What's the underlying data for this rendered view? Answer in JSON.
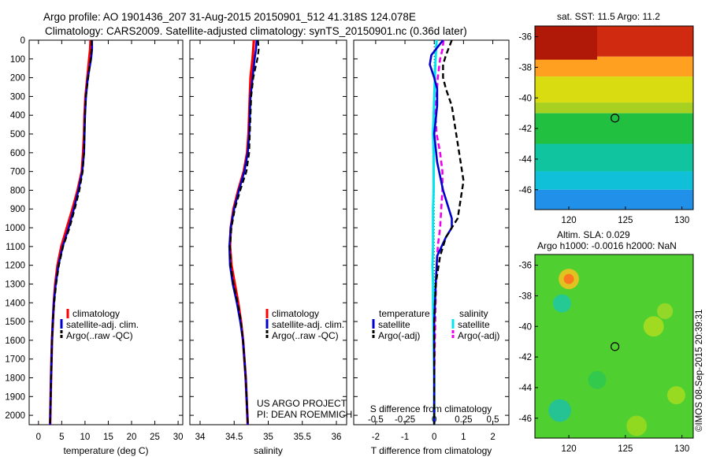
{
  "header": {
    "line1": "Argo profile: AO 1901436_207 31-Aug-2015 20150901_512 41.318S 124.078E",
    "line2": "Climatology: CARS2009. Satellite-adjusted climatology: synTS_20150901.nc (0.36d later)"
  },
  "colors": {
    "climatology": "#ff0000",
    "satellite": "#0000cc",
    "argo": "#000000",
    "salinity_sat": "#00e5ee",
    "salinity_argo": "#ee00ee"
  },
  "depth_ticks": [
    "0",
    "100",
    "200",
    "300",
    "400",
    "500",
    "600",
    "700",
    "800",
    "900",
    "1000",
    "1100",
    "1200",
    "1300",
    "1400",
    "1500",
    "1600",
    "1700",
    "1800",
    "1900",
    "2000"
  ],
  "legends": {
    "temp": [
      "climatology",
      "satellite-adj. clim.",
      "Argo(..raw -QC)"
    ],
    "sal": [
      "climatology",
      "satellite-adj. clim.",
      "Argo(..raw -QC)"
    ],
    "diff": {
      "temperature": "temperature",
      "salinity": "salinity",
      "t_satellite": "satellite",
      "t_argo": "Argo(-adj)",
      "s_satellite": "satellite",
      "s_argo": "Argo(-adj)"
    }
  },
  "project": {
    "line1": "US ARGO PROJECT",
    "line2": "PI: DEAN ROEMMICH"
  },
  "map_top": {
    "title": "sat. SST: 11.5  Argo: 11.2"
  },
  "map_bottom": {
    "title1": "Altim. SLA: 0.029",
    "title2": "Argo h1000: -0.0016 h2000: NaN"
  },
  "watermark": "©IMOS 08-Sep-2015 20:39:31",
  "chart_data": [
    {
      "type": "line",
      "xlabel": "temperature (deg C)",
      "xlim": [
        -2,
        31
      ],
      "ylim": [
        2050,
        0
      ],
      "xticks": [
        "0",
        "5",
        "10",
        "15",
        "20",
        "25",
        "30"
      ],
      "series": [
        {
          "name": "climatology",
          "depth": [
            0,
            50,
            100,
            200,
            300,
            400,
            500,
            600,
            700,
            800,
            900,
            1000,
            1100,
            1200,
            1300,
            1400,
            1500,
            1600,
            1800,
            2050
          ],
          "values": [
            11.2,
            11.1,
            10.9,
            10.5,
            10.1,
            9.9,
            9.8,
            9.6,
            9.3,
            8.4,
            7.3,
            6.1,
            4.9,
            4.1,
            3.6,
            3.3,
            3.1,
            2.9,
            2.7,
            2.5
          ]
        },
        {
          "name": "satellite-adj. clim.",
          "depth": [
            0,
            50,
            100,
            200,
            300,
            400,
            500,
            600,
            700,
            800,
            900,
            1000,
            1100,
            1200,
            1300,
            1400,
            1500,
            1600,
            1800,
            2050
          ],
          "values": [
            11.5,
            11.5,
            11.3,
            10.6,
            10.2,
            10.0,
            9.9,
            9.8,
            9.4,
            8.6,
            7.6,
            6.5,
            5.2,
            4.3,
            3.7,
            3.3,
            3.1,
            2.9,
            2.7,
            2.5
          ]
        },
        {
          "name": "Argo(..raw -QC)",
          "depth": [
            0,
            50,
            100,
            200,
            300,
            400,
            500,
            600,
            700,
            800,
            900,
            1000,
            1100,
            1200,
            1300,
            1400,
            1500,
            1600,
            1800,
            2050
          ],
          "values": [
            11.4,
            11.4,
            11.2,
            10.7,
            10.2,
            10.0,
            9.9,
            9.8,
            9.5,
            8.8,
            7.8,
            6.7,
            5.3,
            4.4,
            3.8,
            3.4,
            3.1,
            2.9,
            2.7,
            2.5
          ]
        }
      ]
    },
    {
      "type": "line",
      "xlabel": "salinity",
      "xlim": [
        33.85,
        36.15
      ],
      "ylim": [
        2050,
        0
      ],
      "xticks": [
        "34",
        "34.5",
        "35",
        "35.5",
        "36"
      ],
      "series": [
        {
          "name": "climatology",
          "depth": [
            0,
            50,
            100,
            200,
            300,
            400,
            500,
            600,
            700,
            800,
            900,
            1000,
            1100,
            1200,
            1300,
            1400,
            1500,
            1600,
            1800,
            2050
          ],
          "values": [
            34.79,
            34.78,
            34.77,
            34.74,
            34.73,
            34.72,
            34.71,
            34.69,
            34.64,
            34.56,
            34.49,
            34.45,
            34.44,
            34.46,
            34.51,
            34.56,
            34.6,
            34.63,
            34.67,
            34.7
          ]
        },
        {
          "name": "satellite-adj. clim.",
          "depth": [
            0,
            50,
            100,
            200,
            300,
            400,
            500,
            600,
            700,
            800,
            900,
            1000,
            1100,
            1200,
            1300,
            1400,
            1500,
            1600,
            1800,
            2050
          ],
          "values": [
            34.83,
            34.82,
            34.8,
            34.77,
            34.74,
            34.73,
            34.72,
            34.7,
            34.65,
            34.57,
            34.5,
            34.45,
            34.43,
            34.44,
            34.48,
            34.54,
            34.59,
            34.63,
            34.67,
            34.7
          ]
        },
        {
          "name": "Argo(..raw -QC)",
          "depth": [
            0,
            50,
            100,
            200,
            300,
            400,
            500,
            600,
            700,
            800,
            900,
            1000,
            1100,
            1200,
            1300,
            1400,
            1500,
            1600,
            1800,
            2050
          ],
          "values": [
            34.85,
            34.86,
            34.84,
            34.78,
            34.75,
            34.74,
            34.73,
            34.72,
            34.68,
            34.59,
            34.51,
            34.46,
            34.44,
            34.45,
            34.49,
            34.55,
            34.6,
            34.63,
            34.67,
            34.7
          ]
        }
      ]
    },
    {
      "type": "line",
      "xlabel": "T difference from climatology",
      "xlabel_top": "S difference from climatology",
      "xlim": [
        -2.75,
        2.55
      ],
      "ylim": [
        2050,
        0
      ],
      "xticks": [
        "-2",
        "-1",
        "0",
        "1",
        "2"
      ],
      "xticks_top": [
        "-0.5",
        "-0.25",
        "0",
        "0.25",
        "0.5"
      ],
      "series": [
        {
          "name": "temperature satellite",
          "depth": [
            0,
            40,
            80,
            130,
            200,
            260,
            350,
            500,
            650,
            800,
            900,
            950,
            1000,
            1050,
            1150,
            1300,
            1500,
            1700,
            1900,
            2050
          ],
          "values": [
            0.3,
            0.1,
            -0.1,
            -0.15,
            0.0,
            0.1,
            0.1,
            0.0,
            0.1,
            0.3,
            0.5,
            0.6,
            0.6,
            0.4,
            0.1,
            0.05,
            0.0,
            0.0,
            0.0,
            0.0
          ]
        },
        {
          "name": "temperature Argo(-adj)",
          "depth": [
            0,
            40,
            80,
            130,
            200,
            260,
            350,
            450,
            550,
            650,
            750,
            850,
            950,
            1000,
            1050,
            1150,
            1300,
            1500,
            1700,
            1900,
            2050
          ],
          "values": [
            0.6,
            0.5,
            0.4,
            0.3,
            0.3,
            0.4,
            0.6,
            0.7,
            0.8,
            0.9,
            1.0,
            0.9,
            0.8,
            0.6,
            0.4,
            0.2,
            0.05,
            0.0,
            0.0,
            0.0,
            0.0
          ]
        },
        {
          "name": "salinity satellite",
          "depth": [
            0,
            60,
            120,
            200,
            300,
            400,
            500,
            600,
            700,
            800,
            900,
            1000,
            1100,
            1200,
            1300,
            1400,
            1600,
            1800,
            2050
          ],
          "values": [
            0.02,
            0.015,
            0.01,
            0.005,
            0.0,
            -0.005,
            -0.01,
            -0.005,
            -0.005,
            -0.005,
            -0.01,
            -0.01,
            -0.01,
            -0.015,
            -0.01,
            -0.01,
            -0.005,
            0.0,
            0.0
          ]
        },
        {
          "name": "salinity Argo(-adj)",
          "depth": [
            0,
            50,
            100,
            200,
            300,
            400,
            500,
            600,
            700,
            800,
            900,
            1000,
            1100,
            1300,
            1600,
            1800,
            2050
          ],
          "values": [
            0.08,
            0.07,
            0.05,
            0.03,
            0.02,
            0.01,
            0.02,
            0.05,
            0.07,
            0.07,
            0.06,
            0.05,
            0.03,
            0.015,
            0.005,
            0.0,
            0.0
          ]
        }
      ]
    },
    {
      "type": "heatmap",
      "title": "sat. SST: 11.5  Argo: 11.2",
      "xlim": [
        117,
        131
      ],
      "ylim": [
        -47.3,
        -35.3
      ],
      "xticks": [
        "120",
        "125",
        "130"
      ],
      "yticks": [
        "-36",
        "-38",
        "-40",
        "-42",
        "-44",
        "-46"
      ],
      "bands": [
        {
          "lat_from": -35.3,
          "lat_to": -37.3,
          "color": "#d02a10"
        },
        {
          "lat_from": -37.3,
          "lat_to": -38.6,
          "color": "#ffa020"
        },
        {
          "lat_from": -38.6,
          "lat_to": -40.3,
          "color": "#d8dc10"
        },
        {
          "lat_from": -40.3,
          "lat_to": -41.0,
          "color": "#a8d020"
        },
        {
          "lat_from": -41.0,
          "lat_to": -43.0,
          "color": "#22c040"
        },
        {
          "lat_from": -43.0,
          "lat_to": -44.8,
          "color": "#10c4a0"
        },
        {
          "lat_from": -44.8,
          "lat_to": -46.0,
          "color": "#10c0d8"
        },
        {
          "lat_from": -46.0,
          "lat_to": -47.3,
          "color": "#2090e8"
        }
      ],
      "marker": {
        "lon": 124.078,
        "lat": -41.318
      }
    },
    {
      "type": "heatmap",
      "title": "Altim. SLA: 0.029",
      "xlim": [
        117,
        131
      ],
      "ylim": [
        -47.3,
        -35.3
      ],
      "xticks": [
        "120",
        "125",
        "130"
      ],
      "yticks": [
        "-36",
        "-38",
        "-40",
        "-42",
        "-44",
        "-46"
      ],
      "background": "#50d030",
      "blobs": [
        {
          "lon": 120.0,
          "lat": -36.9,
          "r": 0.9,
          "color": "#f0c020"
        },
        {
          "lon": 120.0,
          "lat": -36.9,
          "r": 0.45,
          "color": "#ff7020"
        },
        {
          "lon": 119.4,
          "lat": -38.5,
          "r": 0.8,
          "color": "#20c8a0"
        },
        {
          "lon": 119.2,
          "lat": -45.5,
          "r": 1.0,
          "color": "#20c0a0"
        },
        {
          "lon": 127.5,
          "lat": -40.0,
          "r": 0.9,
          "color": "#a8dc20"
        },
        {
          "lon": 128.5,
          "lat": -39.0,
          "r": 0.7,
          "color": "#9ad828"
        },
        {
          "lon": 129.5,
          "lat": -44.5,
          "r": 0.8,
          "color": "#a0da20"
        },
        {
          "lon": 122.5,
          "lat": -43.5,
          "r": 0.8,
          "color": "#30c850"
        },
        {
          "lon": 126.0,
          "lat": -46.5,
          "r": 0.9,
          "color": "#98d820"
        }
      ],
      "marker": {
        "lon": 124.078,
        "lat": -41.318
      }
    }
  ]
}
